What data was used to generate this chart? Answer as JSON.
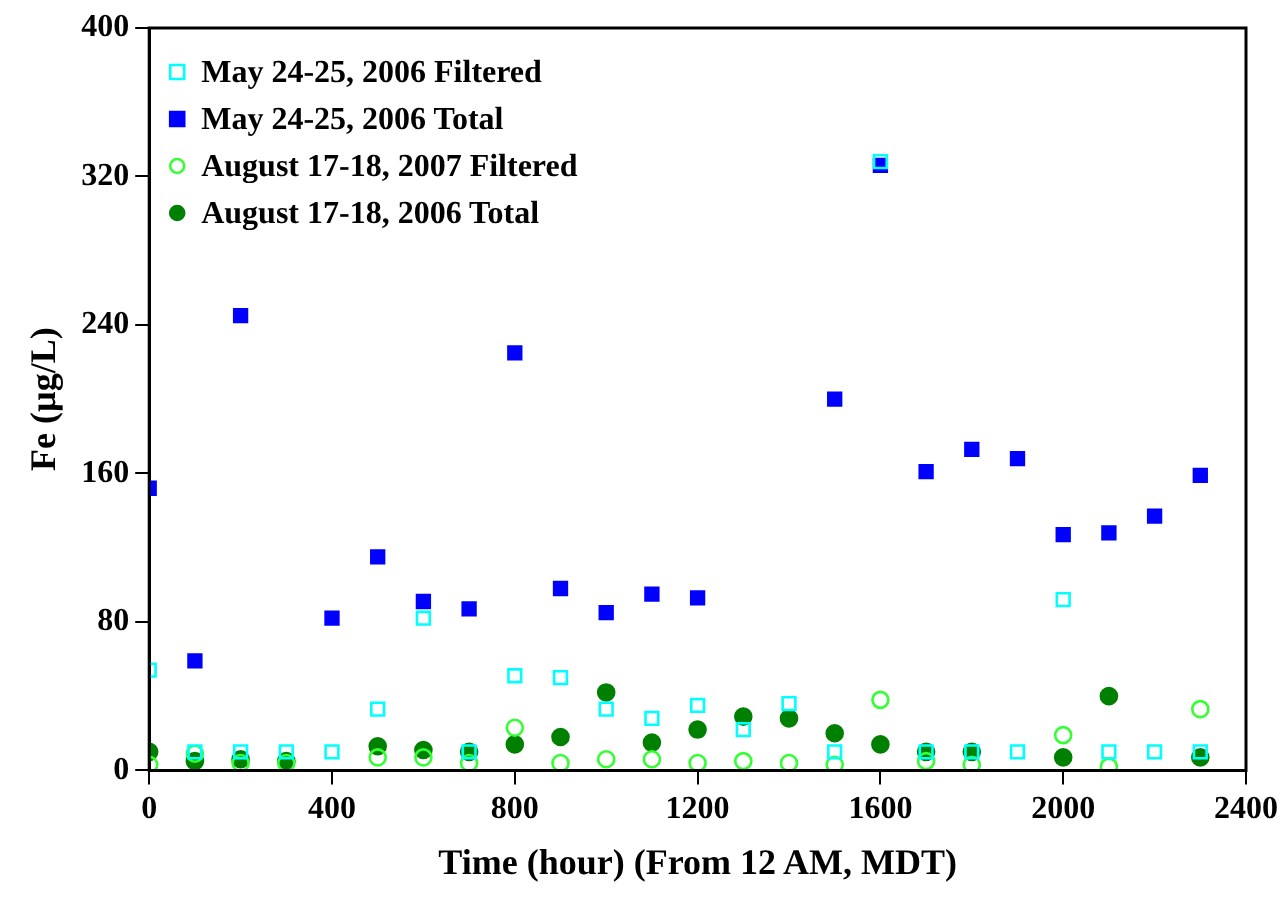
{
  "chart_data": {
    "type": "scatter",
    "xlabel": "Time (hour) (From 12 AM, MDT)",
    "ylabel": "Fe (µg/L)",
    "xlim": [
      0,
      2400
    ],
    "xticks": [
      0,
      400,
      800,
      1200,
      1600,
      2000,
      2400
    ],
    "ylim": [
      0,
      400
    ],
    "yticks": [
      0,
      80,
      160,
      240,
      320,
      400
    ],
    "grid": false,
    "legend": "top left",
    "series": [
      {
        "name": "May 24-25, 2006 Filtered",
        "color": "#00ffff",
        "marker": "square",
        "x": [
          0,
          100,
          200,
          300,
          400,
          500,
          600,
          700,
          800,
          900,
          1000,
          1100,
          1200,
          1300,
          1400,
          1500,
          1600,
          1700,
          1800,
          1900,
          2000,
          2100,
          2200,
          2300
        ],
        "values": [
          54,
          10,
          10,
          10,
          10,
          33,
          82,
          10,
          51,
          50,
          33,
          28,
          35,
          22,
          36,
          10,
          328,
          10,
          10,
          10,
          92,
          10,
          10,
          10
        ]
      },
      {
        "name": "May 24-25, 2006 Total",
        "color": "#0000ff",
        "marker": "square",
        "x": [
          0,
          100,
          200,
          400,
          500,
          600,
          700,
          800,
          900,
          1000,
          1100,
          1200,
          1500,
          1600,
          1700,
          1800,
          1900,
          2000,
          2100,
          2200,
          2300
        ],
        "values": [
          152,
          59,
          245,
          82,
          115,
          91,
          87,
          225,
          98,
          85,
          95,
          93,
          200,
          326,
          161,
          173,
          168,
          127,
          128,
          137,
          159
        ]
      },
      {
        "name": "August 17-18, 2007 Filtered",
        "color": "#33ff33",
        "marker": "circle",
        "x": [
          0,
          100,
          200,
          300,
          500,
          600,
          700,
          800,
          900,
          1000,
          1100,
          1200,
          1300,
          1400,
          1500,
          1600,
          1700,
          1800,
          2000,
          2100,
          2300
        ],
        "values": [
          3,
          9,
          4,
          4,
          7,
          7,
          4,
          23,
          4,
          6,
          6,
          4,
          5,
          4,
          3,
          38,
          5,
          3,
          19,
          2,
          33
        ]
      },
      {
        "name": "August 17-18, 2006 Total",
        "color": "#008000",
        "marker": "circle",
        "x": [
          0,
          100,
          200,
          300,
          500,
          600,
          700,
          800,
          900,
          1000,
          1100,
          1200,
          1300,
          1400,
          1500,
          1600,
          1700,
          1800,
          2000,
          2100,
          2300
        ],
        "values": [
          10,
          5,
          6,
          5,
          13,
          11,
          10,
          14,
          18,
          42,
          15,
          22,
          29,
          28,
          20,
          14,
          10,
          10,
          7,
          40,
          7
        ]
      }
    ]
  }
}
